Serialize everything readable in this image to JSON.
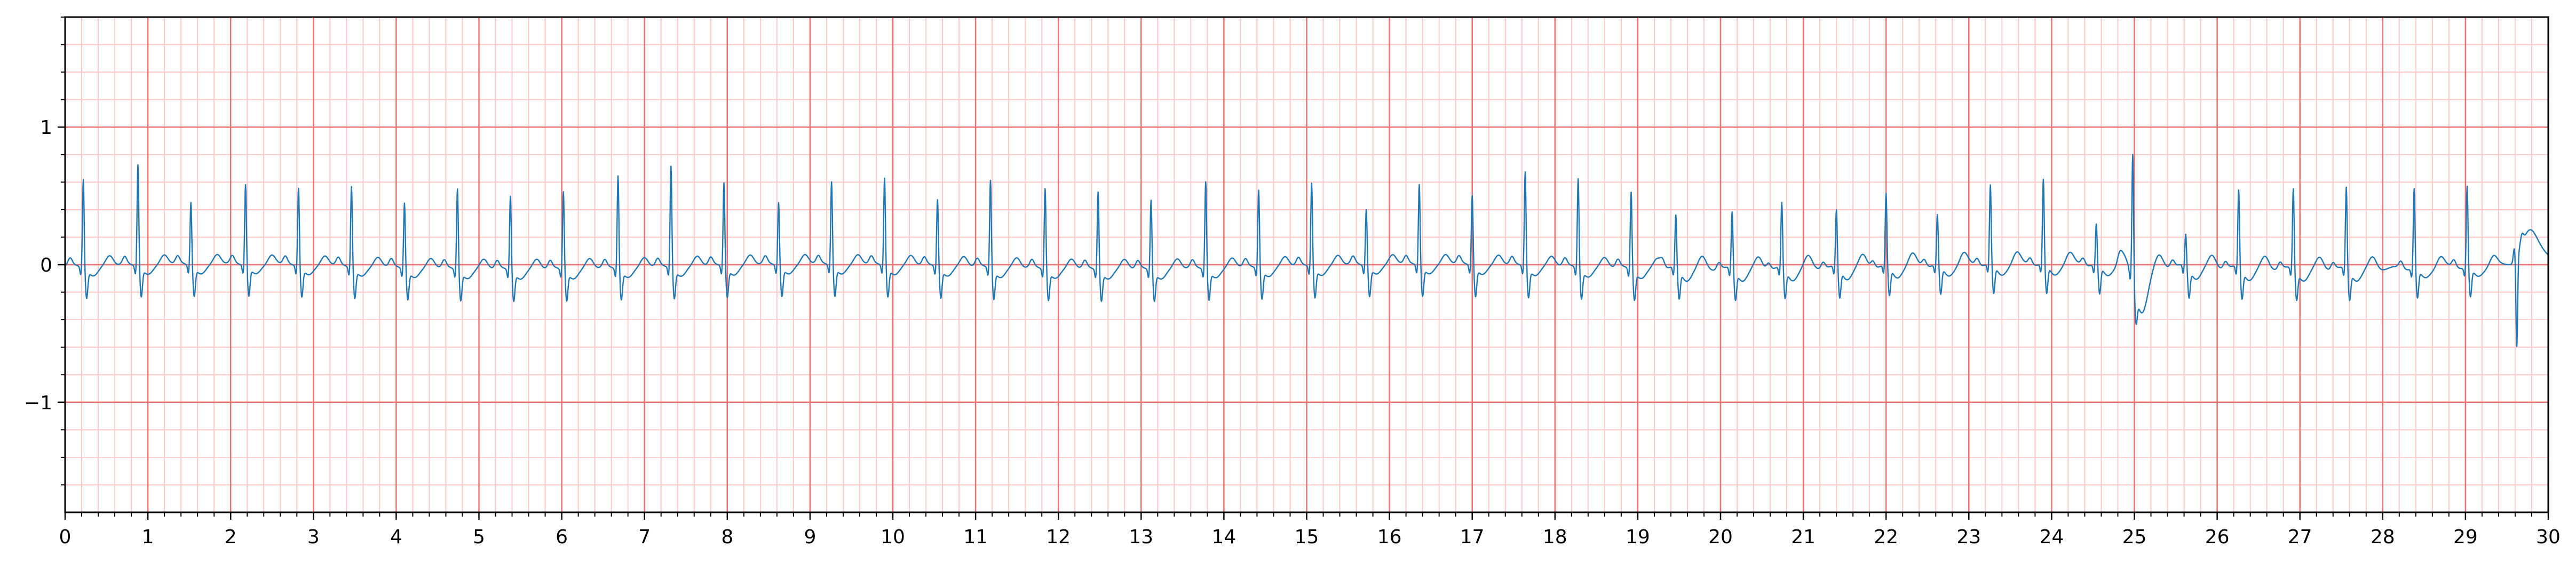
{
  "chart_data": {
    "type": "line",
    "title": "",
    "xlabel": "",
    "ylabel": "",
    "xlim": [
      0,
      30
    ],
    "ylim": [
      -1.8,
      1.8
    ],
    "x_ticks": [
      "0",
      "1",
      "2",
      "3",
      "4",
      "5",
      "6",
      "7",
      "8",
      "9",
      "10",
      "11",
      "12",
      "13",
      "14",
      "15",
      "16",
      "17",
      "18",
      "19",
      "20",
      "21",
      "22",
      "23",
      "24",
      "25",
      "26",
      "27",
      "28",
      "29",
      "30"
    ],
    "y_ticks": [
      {
        "value": 1,
        "label": "1"
      },
      {
        "value": 0,
        "label": "0"
      },
      {
        "value": -1,
        "label": "−1"
      }
    ],
    "grid": {
      "major": true,
      "minor": true,
      "major_step_x": 1,
      "minor_step_x": 0.2,
      "major_step_y": 1,
      "minor_step_y": 0.2,
      "major_color": "#f07070",
      "minor_color": "#ffc8c8"
    },
    "background_color": "#ffffff",
    "series": [
      {
        "color": "#1f77b4",
        "baseline": 0,
        "beats": [
          {
            "t": 0.22,
            "r": 0.65
          },
          {
            "t": 0.88,
            "r": 0.75
          },
          {
            "t": 1.52,
            "r": 0.47
          },
          {
            "t": 2.18,
            "r": 0.6
          },
          {
            "t": 2.82,
            "r": 0.58
          },
          {
            "t": 3.46,
            "r": 0.6
          },
          {
            "t": 4.1,
            "r": 0.49
          },
          {
            "t": 4.74,
            "r": 0.6
          },
          {
            "t": 5.38,
            "r": 0.55
          },
          {
            "t": 6.02,
            "r": 0.58
          },
          {
            "t": 6.68,
            "r": 0.69
          },
          {
            "t": 7.32,
            "r": 0.75
          },
          {
            "t": 7.96,
            "r": 0.62
          },
          {
            "t": 8.62,
            "r": 0.47
          },
          {
            "t": 9.26,
            "r": 0.62
          },
          {
            "t": 9.9,
            "r": 0.65
          },
          {
            "t": 10.54,
            "r": 0.5
          },
          {
            "t": 11.18,
            "r": 0.65
          },
          {
            "t": 11.84,
            "r": 0.6
          },
          {
            "t": 12.48,
            "r": 0.58
          },
          {
            "t": 13.12,
            "r": 0.52
          },
          {
            "t": 13.78,
            "r": 0.65
          },
          {
            "t": 14.42,
            "r": 0.58
          },
          {
            "t": 15.06,
            "r": 0.62
          },
          {
            "t": 15.72,
            "r": 0.42
          },
          {
            "t": 16.36,
            "r": 0.6
          },
          {
            "t": 17.0,
            "r": 0.52
          },
          {
            "t": 17.64,
            "r": 0.7
          },
          {
            "t": 18.28,
            "r": 0.66
          },
          {
            "t": 18.92,
            "r": 0.57
          },
          {
            "t": 19.46,
            "r": 0.39
          },
          {
            "t": 20.14,
            "r": 0.42
          },
          {
            "t": 20.74,
            "r": 0.48
          },
          {
            "t": 21.4,
            "r": 0.42
          },
          {
            "t": 22.0,
            "r": 0.53
          },
          {
            "t": 22.62,
            "r": 0.37
          },
          {
            "t": 23.26,
            "r": 0.58
          },
          {
            "t": 23.9,
            "r": 0.62
          },
          {
            "t": 24.54,
            "r": 0.3
          },
          {
            "t": 24.98,
            "r": 0.93
          },
          {
            "t": 25.62,
            "r": 0.24
          },
          {
            "t": 26.26,
            "r": 0.57
          },
          {
            "t": 26.92,
            "r": 0.59
          },
          {
            "t": 27.56,
            "r": 0.6
          },
          {
            "t": 28.38,
            "r": 0.59
          },
          {
            "t": 29.02,
            "r": 0.6
          },
          {
            "t": 29.62,
            "r": -0.65
          }
        ]
      }
    ]
  }
}
